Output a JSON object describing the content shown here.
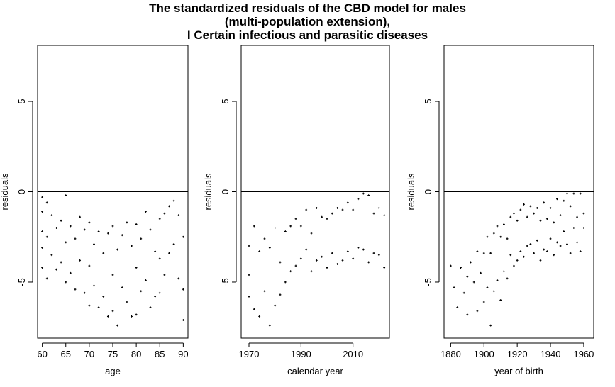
{
  "title_lines": [
    "The standardized residuals of the CBD model for males",
    "(multi-population extension),",
    "I Certain infectious and parasitic diseases"
  ],
  "chart_data": [
    {
      "type": "scatter",
      "xlabel": "age",
      "ylabel": "residuals",
      "xlim": [
        59,
        91
      ],
      "ylim": [
        -8.1,
        8.1
      ],
      "xticks": [
        60,
        65,
        70,
        75,
        80,
        85,
        90
      ],
      "yticks": [
        -5,
        0,
        5
      ],
      "reference_line_y": 0,
      "points": [
        [
          60,
          -0.3
        ],
        [
          60,
          -1.1
        ],
        [
          60,
          -2.2
        ],
        [
          60,
          -3.1
        ],
        [
          60,
          -4.2
        ],
        [
          61,
          -0.6
        ],
        [
          61,
          -2.5
        ],
        [
          61,
          -4.8
        ],
        [
          62,
          -1.3
        ],
        [
          62,
          -3.5
        ],
        [
          63,
          -2.0
        ],
        [
          63,
          -4.3
        ],
        [
          64,
          -1.6
        ],
        [
          64,
          -3.9
        ],
        [
          65,
          -0.2
        ],
        [
          65,
          -2.8
        ],
        [
          65,
          -5.0
        ],
        [
          66,
          -1.9
        ],
        [
          66,
          -4.5
        ],
        [
          67,
          -2.6
        ],
        [
          67,
          -5.4
        ],
        [
          68,
          -1.4
        ],
        [
          68,
          -3.8
        ],
        [
          69,
          -2.1
        ],
        [
          69,
          -5.6
        ],
        [
          70,
          -1.7
        ],
        [
          70,
          -4.1
        ],
        [
          70,
          -6.3
        ],
        [
          71,
          -2.9
        ],
        [
          71,
          -5.2
        ],
        [
          72,
          -2.2
        ],
        [
          72,
          -6.4
        ],
        [
          73,
          -3.4
        ],
        [
          73,
          -5.8
        ],
        [
          74,
          -2.3
        ],
        [
          74,
          -6.9
        ],
        [
          75,
          -1.9
        ],
        [
          75,
          -4.6
        ],
        [
          75,
          -6.6
        ],
        [
          76,
          -3.2
        ],
        [
          76,
          -7.4
        ],
        [
          77,
          -2.4
        ],
        [
          77,
          -5.3
        ],
        [
          78,
          -1.7
        ],
        [
          78,
          -6.1
        ],
        [
          79,
          -3.0
        ],
        [
          79,
          -6.9
        ],
        [
          80,
          -1.8
        ],
        [
          80,
          -4.2
        ],
        [
          80,
          -6.8
        ],
        [
          81,
          -2.6
        ],
        [
          81,
          -5.5
        ],
        [
          82,
          -1.1
        ],
        [
          82,
          -4.9
        ],
        [
          83,
          -2.1
        ],
        [
          83,
          -6.4
        ],
        [
          84,
          -3.3
        ],
        [
          84,
          -5.8
        ],
        [
          85,
          -1.5
        ],
        [
          85,
          -3.7
        ],
        [
          85,
          -5.6
        ],
        [
          86,
          -1.2
        ],
        [
          86,
          -4.6
        ],
        [
          87,
          -0.8
        ],
        [
          87,
          -3.4
        ],
        [
          88,
          -0.5
        ],
        [
          88,
          -2.9
        ],
        [
          89,
          -1.3
        ],
        [
          89,
          -4.8
        ],
        [
          90,
          -2.5
        ],
        [
          90,
          -5.4
        ],
        [
          90,
          -7.1
        ]
      ]
    },
    {
      "type": "scatter",
      "xlabel": "calendar year",
      "ylabel": "residuals",
      "xlim": [
        1967,
        2024
      ],
      "ylim": [
        -8.1,
        8.1
      ],
      "xticks": [
        1970,
        1990,
        2010
      ],
      "yticks": [
        -5,
        0,
        5
      ],
      "reference_line_y": 0,
      "points": [
        [
          1970,
          -3.0
        ],
        [
          1970,
          -4.6
        ],
        [
          1970,
          -5.8
        ],
        [
          1972,
          -1.9
        ],
        [
          1972,
          -6.5
        ],
        [
          1974,
          -3.3
        ],
        [
          1974,
          -6.9
        ],
        [
          1976,
          -2.6
        ],
        [
          1976,
          -5.5
        ],
        [
          1978,
          -3.1
        ],
        [
          1978,
          -7.4
        ],
        [
          1980,
          -2.0
        ],
        [
          1980,
          -6.3
        ],
        [
          1982,
          -3.9
        ],
        [
          1982,
          -5.7
        ],
        [
          1984,
          -2.2
        ],
        [
          1984,
          -5.0
        ],
        [
          1986,
          -1.9
        ],
        [
          1986,
          -4.4
        ],
        [
          1988,
          -1.5
        ],
        [
          1988,
          -4.1
        ],
        [
          1990,
          -1.9
        ],
        [
          1990,
          -3.7
        ],
        [
          1992,
          -1.0
        ],
        [
          1992,
          -3.2
        ],
        [
          1994,
          -2.3
        ],
        [
          1994,
          -4.4
        ],
        [
          1996,
          -0.9
        ],
        [
          1996,
          -3.8
        ],
        [
          1998,
          -1.4
        ],
        [
          1998,
          -3.6
        ],
        [
          2000,
          -1.5
        ],
        [
          2000,
          -4.2
        ],
        [
          2002,
          -1.2
        ],
        [
          2002,
          -3.4
        ],
        [
          2004,
          -0.9
        ],
        [
          2004,
          -4.0
        ],
        [
          2006,
          -1.0
        ],
        [
          2006,
          -3.8
        ],
        [
          2008,
          -0.6
        ],
        [
          2008,
          -3.3
        ],
        [
          2010,
          -1.0
        ],
        [
          2010,
          -3.7
        ],
        [
          2012,
          -0.4
        ],
        [
          2012,
          -3.1
        ],
        [
          2014,
          -0.1
        ],
        [
          2014,
          -3.2
        ],
        [
          2016,
          -0.2
        ],
        [
          2016,
          -3.9
        ],
        [
          2018,
          -1.2
        ],
        [
          2018,
          -3.4
        ],
        [
          2020,
          -0.9
        ],
        [
          2020,
          -3.5
        ],
        [
          2022,
          -1.3
        ],
        [
          2022,
          -4.2
        ]
      ]
    },
    {
      "type": "scatter",
      "xlabel": "year of birth",
      "ylabel": "residuals",
      "xlim": [
        1876,
        1966
      ],
      "ylim": [
        -8.1,
        8.1
      ],
      "xticks": [
        1880,
        1900,
        1920,
        1940,
        1960
      ],
      "yticks": [
        -5,
        0,
        5
      ],
      "reference_line_y": 0,
      "points": [
        [
          1880,
          -4.1
        ],
        [
          1882,
          -5.3
        ],
        [
          1884,
          -6.4
        ],
        [
          1886,
          -4.2
        ],
        [
          1888,
          -5.6
        ],
        [
          1890,
          -4.7
        ],
        [
          1890,
          -6.8
        ],
        [
          1892,
          -3.9
        ],
        [
          1894,
          -5.0
        ],
        [
          1896,
          -3.3
        ],
        [
          1896,
          -6.6
        ],
        [
          1898,
          -4.5
        ],
        [
          1900,
          -3.4
        ],
        [
          1900,
          -6.1
        ],
        [
          1902,
          -2.5
        ],
        [
          1902,
          -5.3
        ],
        [
          1904,
          -3.4
        ],
        [
          1904,
          -7.4
        ],
        [
          1906,
          -2.3
        ],
        [
          1906,
          -5.5
        ],
        [
          1908,
          -1.9
        ],
        [
          1908,
          -4.9
        ],
        [
          1910,
          -2.5
        ],
        [
          1910,
          -6.0
        ],
        [
          1912,
          -1.8
        ],
        [
          1912,
          -4.4
        ],
        [
          1914,
          -2.6
        ],
        [
          1914,
          -4.8
        ],
        [
          1916,
          -1.4
        ],
        [
          1916,
          -3.5
        ],
        [
          1918,
          -1.2
        ],
        [
          1918,
          -4.1
        ],
        [
          1920,
          -1.6
        ],
        [
          1920,
          -3.8
        ],
        [
          1922,
          -1.0
        ],
        [
          1922,
          -3.3
        ],
        [
          1924,
          -0.7
        ],
        [
          1924,
          -3.6
        ],
        [
          1926,
          -1.4
        ],
        [
          1926,
          -3.0
        ],
        [
          1928,
          -0.8
        ],
        [
          1928,
          -2.9
        ],
        [
          1930,
          -1.2
        ],
        [
          1930,
          -3.4
        ],
        [
          1932,
          -0.9
        ],
        [
          1932,
          -2.7
        ],
        [
          1934,
          -1.6
        ],
        [
          1934,
          -3.8
        ],
        [
          1936,
          -0.6
        ],
        [
          1936,
          -3.2
        ],
        [
          1938,
          -1.5
        ],
        [
          1938,
          -3.3
        ],
        [
          1940,
          -0.9
        ],
        [
          1940,
          -2.6
        ],
        [
          1942,
          -1.7
        ],
        [
          1942,
          -3.5
        ],
        [
          1944,
          -0.4
        ],
        [
          1944,
          -2.8
        ],
        [
          1946,
          -1.3
        ],
        [
          1946,
          -3.0
        ],
        [
          1948,
          -0.5
        ],
        [
          1948,
          -2.2
        ],
        [
          1950,
          -0.1
        ],
        [
          1950,
          -2.9
        ],
        [
          1952,
          -0.8
        ],
        [
          1952,
          -3.4
        ],
        [
          1954,
          -0.1
        ],
        [
          1954,
          -2.0
        ],
        [
          1956,
          -1.4
        ],
        [
          1956,
          -2.8
        ],
        [
          1958,
          -0.1
        ],
        [
          1958,
          -3.3
        ],
        [
          1960,
          -1.2
        ],
        [
          1960,
          -2.0
        ]
      ]
    }
  ]
}
